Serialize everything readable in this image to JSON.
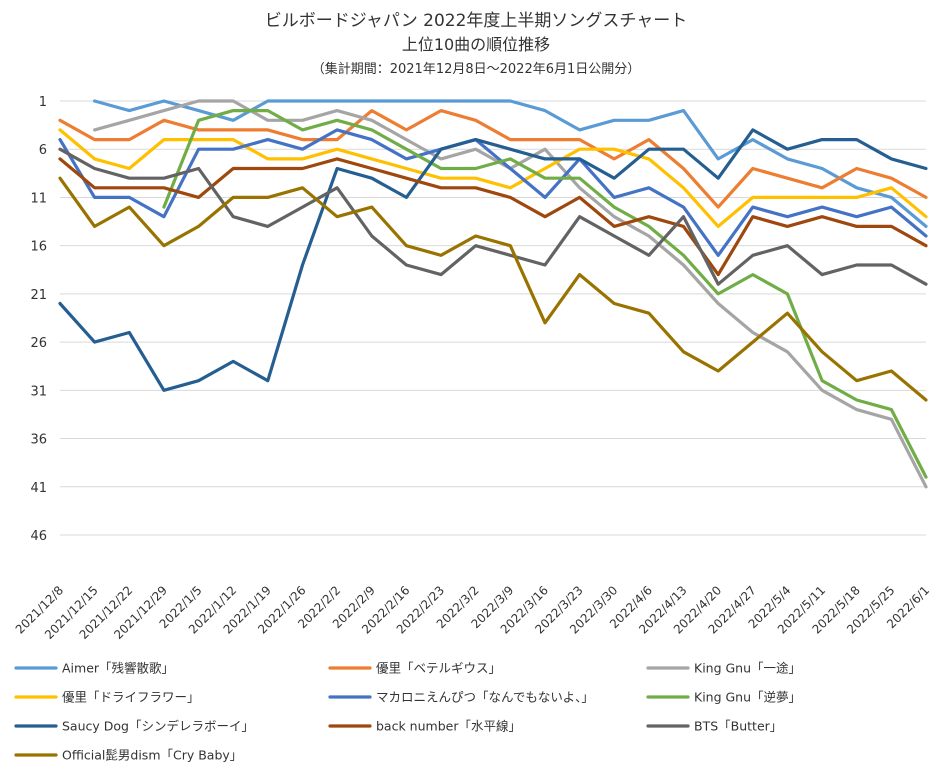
{
  "chart_data": {
    "type": "line",
    "title": "ビルボードジャパン 2022年度上半期ソングスチャート",
    "subtitle": "上位10曲の順位推移",
    "note": "（集計期間：2021年12月8日～2022年6月1日公開分）",
    "y_reversed": true,
    "ylim": [
      1,
      46
    ],
    "yticks": [
      1,
      6,
      11,
      16,
      21,
      26,
      31,
      36,
      41,
      46
    ],
    "grid": true,
    "legend_position": "bottom",
    "categories": [
      "2021/12/8",
      "2021/12/15",
      "2021/12/22",
      "2021/12/29",
      "2022/1/5",
      "2022/1/12",
      "2022/1/19",
      "2022/1/26",
      "2022/2/2",
      "2022/2/9",
      "2022/2/16",
      "2022/2/23",
      "2022/3/2",
      "2022/3/9",
      "2022/3/16",
      "2022/3/23",
      "2022/3/30",
      "2022/4/6",
      "2022/4/13",
      "2022/4/20",
      "2022/4/27",
      "2022/5/4",
      "2022/5/11",
      "2022/5/18",
      "2022/5/25",
      "2022/6/1"
    ],
    "series": [
      {
        "name": "Aimer「残響散歌」",
        "color": "#5b9bd5",
        "values": [
          null,
          1,
          2,
          1,
          2,
          3,
          1,
          1,
          1,
          1,
          1,
          1,
          1,
          1,
          2,
          4,
          3,
          3,
          2,
          7,
          5,
          7,
          8,
          10,
          11,
          14
        ]
      },
      {
        "name": "優里「ベテルギウス」",
        "color": "#ed7d31",
        "values": [
          3,
          5,
          5,
          3,
          4,
          4,
          4,
          5,
          5,
          2,
          4,
          2,
          3,
          5,
          5,
          5,
          7,
          5,
          8,
          12,
          8,
          9,
          10,
          8,
          9,
          11
        ]
      },
      {
        "name": "King Gnu「一途」",
        "color": "#a5a5a5",
        "values": [
          null,
          4,
          3,
          2,
          1,
          1,
          3,
          3,
          2,
          3,
          5,
          7,
          6,
          8,
          6,
          10,
          13,
          15,
          18,
          22,
          25,
          27,
          31,
          33,
          34,
          41
        ]
      },
      {
        "name": "優里「ドライフラワー」",
        "color": "#ffc000",
        "values": [
          4,
          7,
          8,
          5,
          5,
          5,
          7,
          7,
          6,
          7,
          8,
          9,
          9,
          10,
          8,
          6,
          6,
          7,
          10,
          14,
          11,
          11,
          11,
          11,
          10,
          13
        ]
      },
      {
        "name": "マカロニえんぴつ「なんでもないよ、」",
        "color": "#4472c4",
        "values": [
          5,
          11,
          11,
          13,
          6,
          6,
          5,
          6,
          4,
          5,
          7,
          6,
          5,
          8,
          11,
          7,
          11,
          10,
          12,
          17,
          12,
          13,
          12,
          13,
          12,
          15
        ]
      },
      {
        "name": "King Gnu「逆夢」",
        "color": "#70ad47",
        "values": [
          null,
          null,
          null,
          12,
          3,
          2,
          2,
          4,
          3,
          4,
          6,
          8,
          8,
          7,
          9,
          9,
          12,
          14,
          17,
          21,
          19,
          21,
          30,
          32,
          33,
          40
        ]
      },
      {
        "name": "Saucy Dog「シンデレラボーイ」",
        "color": "#255e91",
        "values": [
          22,
          26,
          25,
          31,
          30,
          28,
          30,
          18,
          8,
          9,
          11,
          6,
          5,
          6,
          7,
          7,
          9,
          6,
          6,
          9,
          4,
          6,
          5,
          5,
          7,
          8
        ]
      },
      {
        "name": "back number「水平線」",
        "color": "#9e480e",
        "values": [
          7,
          10,
          10,
          10,
          11,
          8,
          8,
          8,
          7,
          8,
          9,
          10,
          10,
          11,
          13,
          11,
          14,
          13,
          14,
          19,
          13,
          14,
          13,
          14,
          14,
          16
        ]
      },
      {
        "name": "BTS「Butter」",
        "color": "#636363",
        "values": [
          6,
          8,
          9,
          9,
          8,
          13,
          14,
          12,
          10,
          15,
          18,
          19,
          16,
          17,
          18,
          13,
          15,
          17,
          13,
          20,
          17,
          16,
          19,
          18,
          18,
          20
        ]
      },
      {
        "name": "Official髭男dism「Cry Baby」",
        "color": "#997300",
        "values": [
          9,
          14,
          12,
          16,
          14,
          11,
          11,
          10,
          13,
          12,
          16,
          17,
          15,
          16,
          24,
          19,
          22,
          23,
          27,
          29,
          26,
          23,
          27,
          30,
          29,
          32
        ]
      }
    ]
  }
}
